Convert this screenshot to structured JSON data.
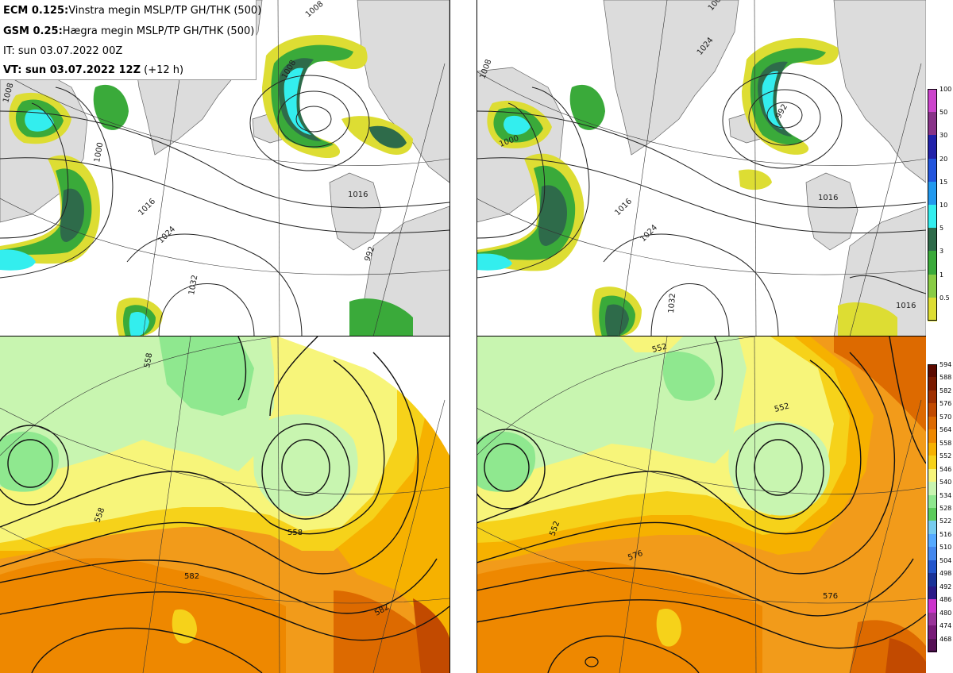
{
  "header": {
    "line1_model": "ECM 0.125:",
    "line1_desc": "Vinstra megin MSLP/TP GH/THK (500)",
    "line2_model": "GSM 0.25:",
    "line2_desc": "Hægra megin MSLP/TP GH/THK (500)",
    "line3": "IT: sun 03.07.2022 00Z",
    "line4_bold": "VT: sun 03.07.2022 12Z",
    "line4_rest": "(+12 h)"
  },
  "precip_legend": {
    "labels": [
      "100",
      "50",
      "30",
      "20",
      "15",
      "10",
      "5",
      "3",
      "1",
      "0.5"
    ],
    "colors": [
      "#cc44cc",
      "#883388",
      "#2222aa",
      "#2255dd",
      "#2299ee",
      "#33eeee",
      "#2e6b4a",
      "#3aaa3a",
      "#88cc44",
      "#dddd33"
    ]
  },
  "thk_legend": {
    "labels": [
      "594",
      "588",
      "582",
      "576",
      "570",
      "564",
      "558",
      "552",
      "546",
      "540",
      "534",
      "528",
      "522",
      "516",
      "510",
      "504",
      "498",
      "492",
      "486",
      "480",
      "474",
      "468"
    ],
    "colors": [
      "#5c0a00",
      "#7a1a00",
      "#a03000",
      "#c24a00",
      "#dd6a00",
      "#ee8800",
      "#f6b100",
      "#f6d21a",
      "#f7f57a",
      "#c8f5b0",
      "#8fe88f",
      "#5ccc5c",
      "#77ccee",
      "#55aaff",
      "#4488ee",
      "#2255cc",
      "#1a3399",
      "#2a1a88",
      "#cc33cc",
      "#993399",
      "#771a77",
      "#551155"
    ]
  },
  "maps": {
    "ecm_mslp": {
      "contour_labels": [
        "1008",
        "1000",
        "1016",
        "1024",
        "1032",
        "1008",
        "1008",
        "1016",
        "992"
      ]
    },
    "gsm_mslp": {
      "contour_labels": [
        "1008",
        "1000",
        "1016",
        "1024",
        "1032",
        "1008",
        "1024",
        "1016",
        "1016",
        "992"
      ]
    },
    "ecm_gh": {
      "contour_labels": [
        "558",
        "558",
        "558",
        "582",
        "582"
      ]
    },
    "gsm_gh": {
      "contour_labels": [
        "552",
        "552",
        "552",
        "576",
        "576"
      ]
    }
  }
}
